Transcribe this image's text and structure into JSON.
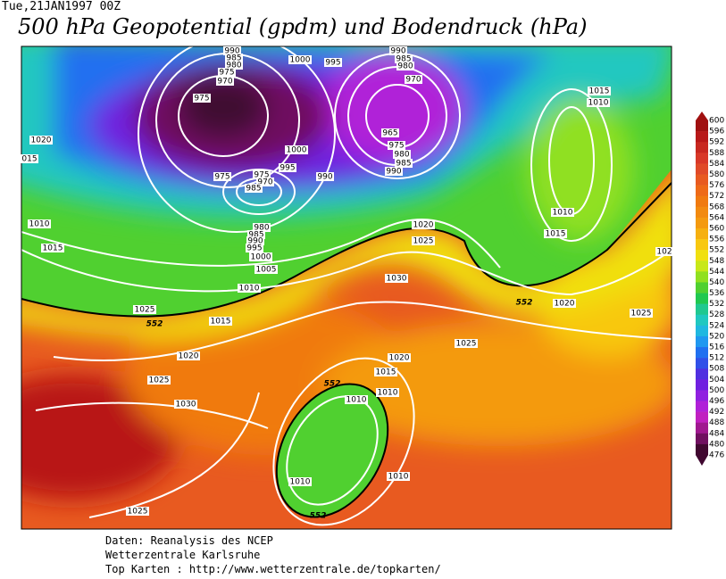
{
  "header": {
    "date": "Tue,21JAN1997 00Z",
    "title": "500 hPa Geopotential (gpdm) und Bodendruck (hPa)"
  },
  "colorbar": {
    "labels": [
      "600",
      "596",
      "592",
      "588",
      "584",
      "580",
      "576",
      "572",
      "568",
      "564",
      "560",
      "556",
      "552",
      "548",
      "544",
      "540",
      "536",
      "532",
      "528",
      "524",
      "520",
      "516",
      "512",
      "508",
      "504",
      "500",
      "496",
      "492",
      "488",
      "484",
      "480",
      "476"
    ],
    "colors": [
      "#a01010",
      "#b81818",
      "#c82820",
      "#d83828",
      "#e04a28",
      "#e85a20",
      "#ee6a18",
      "#f07a10",
      "#f28a10",
      "#f49a10",
      "#f6b010",
      "#f8c810",
      "#f0e010",
      "#c8e818",
      "#90e020",
      "#50d030",
      "#20c850",
      "#20c890",
      "#20c8c0",
      "#20b8e0",
      "#2098f0",
      "#2070f0",
      "#3050e8",
      "#5030e0",
      "#7020e0",
      "#9020e0",
      "#b020d8",
      "#c020c0",
      "#a01890",
      "#701060",
      "#400830"
    ]
  },
  "contour_labels": [
    "990",
    "985",
    "980",
    "975",
    "970",
    "975",
    "1000",
    "995",
    "990",
    "985",
    "980",
    "970",
    "965",
    "975",
    "980",
    "985",
    "990",
    "1000",
    "995",
    "990",
    "975",
    "975",
    "970",
    "985",
    "980",
    "985",
    "990",
    "995",
    "1000",
    "1005",
    "1010",
    "1015",
    "1010",
    "1010",
    "1015",
    "1020",
    "015",
    "1010",
    "1015",
    "1025",
    "1015",
    "1020",
    "1025",
    "1030",
    "1025",
    "1020",
    "1025",
    "1030",
    "1020",
    "1025",
    "1025",
    "1020",
    "1015",
    "1010",
    "1010",
    "1010",
    "1010",
    "102"
  ],
  "height_labels": [
    "552",
    "552",
    "552",
    "552"
  ],
  "footer": {
    "line1": "Daten: Reanalysis des NCEP",
    "line2": "Wetterzentrale Karlsruhe",
    "line3": "Top Karten :  http://www.wetterzentrale.de/topkarten/"
  }
}
